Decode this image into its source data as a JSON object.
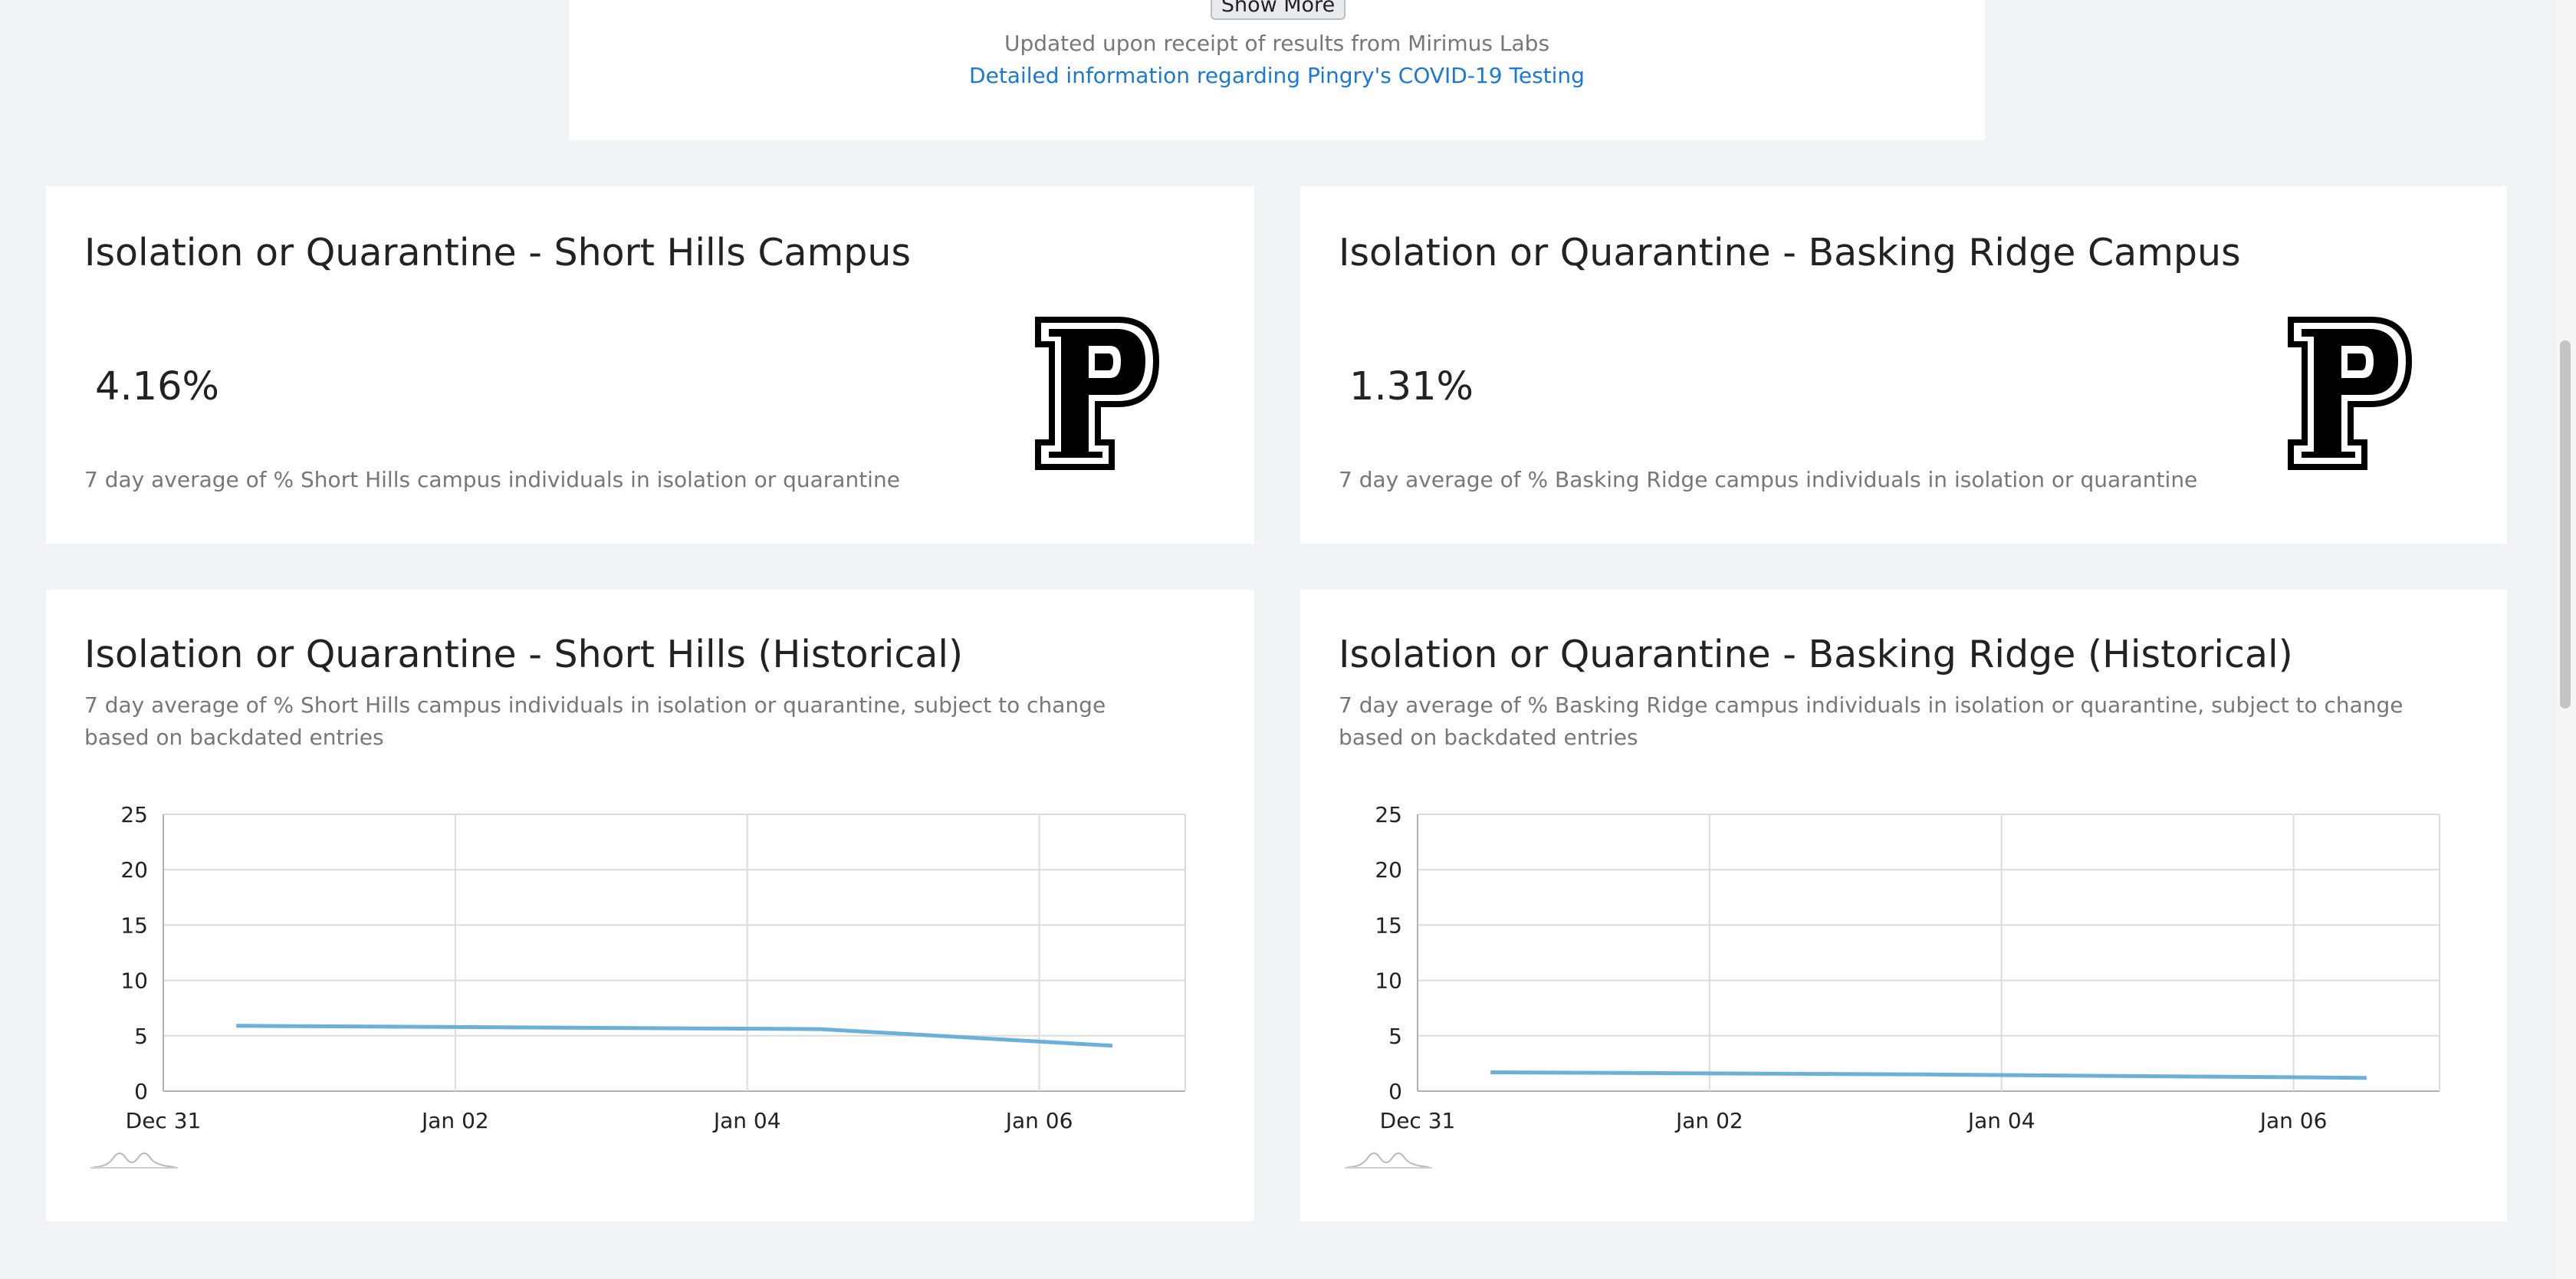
{
  "top_panel": {
    "show_more_label": "Show More",
    "updated_text": "Updated upon receipt of results from Mirimus Labs",
    "detail_link": "Detailed information regarding Pingry's COVID-19 Testing"
  },
  "stats": [
    {
      "title": "Isolation or Quarantine - Short Hills Campus",
      "value": "4.16%",
      "subtitle": "7 day average of % Short Hills campus individuals in isolation or quarantine"
    },
    {
      "title": "Isolation or Quarantine - Basking Ridge Campus",
      "value": "1.31%",
      "subtitle": "7 day average of % Basking Ridge campus individuals in isolation or quarantine"
    }
  ],
  "historical": [
    {
      "title": "Isolation or Quarantine - Short Hills (Historical)",
      "description": "7 day average of % Short Hills campus individuals in isolation or quarantine, subject to change based on backdated entries"
    },
    {
      "title": "Isolation or Quarantine - Basking Ridge (Historical)",
      "description": "7 day average of % Basking Ridge campus individuals in isolation or quarantine, subject to change based on backdated entries"
    }
  ],
  "colors": {
    "line": "#6ab0da",
    "grid": "#dcdcdc",
    "axis": "#b0b0b0"
  },
  "chart_data": [
    {
      "type": "line",
      "x": [
        "2020-12-31T12:00",
        "2021-01-04T12:00",
        "2021-01-06T12:00"
      ],
      "x_ticks": [
        "Dec 31",
        "Jan 02",
        "Jan 04",
        "Jan 06"
      ],
      "y_ticks": [
        0,
        5,
        10,
        15,
        20,
        25
      ],
      "ylim": [
        0,
        25
      ],
      "xlim": [
        "2020-12-31",
        "2021-01-07"
      ],
      "series": [
        {
          "values": [
            5.9,
            5.6,
            4.1
          ]
        }
      ],
      "grid": true
    },
    {
      "type": "line",
      "x": [
        "2020-12-31T12:00",
        "2021-01-03T12:00",
        "2021-01-06T12:00"
      ],
      "x_ticks": [
        "Dec 31",
        "Jan 02",
        "Jan 04",
        "Jan 06"
      ],
      "y_ticks": [
        0,
        5,
        10,
        15,
        20,
        25
      ],
      "ylim": [
        0,
        25
      ],
      "xlim": [
        "2020-12-31",
        "2021-01-07"
      ],
      "series": [
        {
          "values": [
            1.7,
            1.5,
            1.2
          ]
        }
      ],
      "grid": true
    }
  ]
}
